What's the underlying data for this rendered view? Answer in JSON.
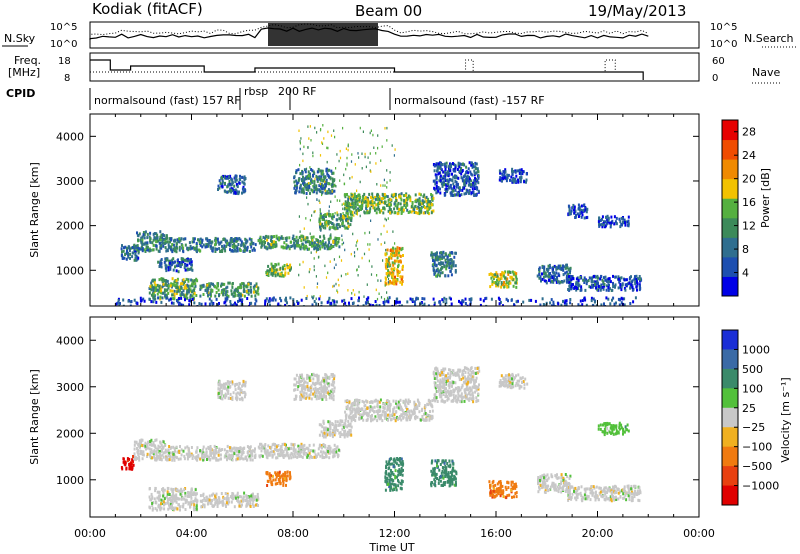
{
  "header": {
    "station": "Kodiak (fitACF)",
    "beam": "Beam 00",
    "date": "19/May/2013"
  },
  "summary_panels": {
    "nsky_label": "N.Sky",
    "nsky_ticks": [
      "10^5",
      "10^0"
    ],
    "nsearch_label": "N.Search",
    "freq_label_1": "Freq.",
    "freq_label_2": "[MHz]",
    "freq_ticks": [
      "18",
      "8"
    ],
    "nave_ticks": [
      "60",
      "0"
    ],
    "nave_label": "Nave",
    "cpid_label": "CPID",
    "cpid_segments": [
      "normalsound (fast) 157 RF",
      "rbsp",
      "200 RF",
      "normalsound (fast) -157 RF"
    ]
  },
  "colors": {
    "power": [
      "#0000e6",
      "#1d4fb0",
      "#2f6e8f",
      "#3c8a5a",
      "#55b040",
      "#f2c200",
      "#f08a00",
      "#f04c00",
      "#e60000"
    ],
    "velocity": [
      "#1a2ed6",
      "#3a6aa6",
      "#3a8a6a",
      "#52c03a",
      "#c8c8c8",
      "#f0b020",
      "#f07a10",
      "#e84010",
      "#e00000"
    ]
  },
  "chart_data": [
    {
      "type": "heatmap",
      "quantity": "Power",
      "xlabel": "Time UT",
      "ylabel": "Slant Range [km]",
      "x_ticks": [
        "00:00",
        "04:00",
        "08:00",
        "12:00",
        "16:00",
        "20:00",
        "00:00"
      ],
      "xlim_hours": [
        0,
        24
      ],
      "ylim": [
        200,
        4500
      ],
      "y_ticks": [
        1000,
        2000,
        3000,
        4000
      ],
      "colorbar_label": "Power [dB]",
      "colorbar_ticks": [
        4,
        8,
        12,
        16,
        20,
        24,
        28
      ],
      "colorbar_range": [
        0,
        30
      ],
      "echo_regions": [
        {
          "t0": 1.7,
          "t1": 3.0,
          "r0": 1450,
          "r1": 1900,
          "v": 10
        },
        {
          "t0": 1.2,
          "t1": 1.9,
          "r0": 1250,
          "r1": 1600,
          "v": 8
        },
        {
          "t0": 2.3,
          "t1": 4.2,
          "r0": 380,
          "r1": 850,
          "v": 13
        },
        {
          "t0": 4.3,
          "t1": 6.6,
          "r0": 450,
          "r1": 750,
          "v": 12
        },
        {
          "t0": 3.0,
          "t1": 6.5,
          "r0": 1450,
          "r1": 1750,
          "v": 9
        },
        {
          "t0": 2.6,
          "t1": 4.0,
          "r0": 1000,
          "r1": 1300,
          "v": 7
        },
        {
          "t0": 5.0,
          "t1": 6.1,
          "r0": 2750,
          "r1": 3150,
          "v": 7
        },
        {
          "t0": 6.6,
          "t1": 9.8,
          "r0": 1500,
          "r1": 1800,
          "v": 12
        },
        {
          "t0": 8.0,
          "t1": 9.6,
          "r0": 2750,
          "r1": 3300,
          "v": 9
        },
        {
          "t0": 9.0,
          "t1": 10.3,
          "r0": 1950,
          "r1": 2300,
          "v": 13
        },
        {
          "t0": 10.0,
          "t1": 13.5,
          "r0": 2300,
          "r1": 2750,
          "v": 14
        },
        {
          "t0": 13.5,
          "t1": 15.3,
          "r0": 2700,
          "r1": 3450,
          "v": 6
        },
        {
          "t0": 6.9,
          "t1": 7.9,
          "r0": 900,
          "r1": 1200,
          "v": 15
        },
        {
          "t0": 11.6,
          "t1": 12.3,
          "r0": 700,
          "r1": 1550,
          "v": 19
        },
        {
          "t0": 13.4,
          "t1": 14.4,
          "r0": 900,
          "r1": 1450,
          "v": 9
        },
        {
          "t0": 15.7,
          "t1": 16.8,
          "r0": 650,
          "r1": 1000,
          "v": 16
        },
        {
          "t0": 17.6,
          "t1": 18.9,
          "r0": 750,
          "r1": 1150,
          "v": 7
        },
        {
          "t0": 18.8,
          "t1": 21.7,
          "r0": 580,
          "r1": 900,
          "v": 6
        },
        {
          "t0": 20.0,
          "t1": 21.2,
          "r0": 2000,
          "r1": 2250,
          "v": 5
        },
        {
          "t0": 18.8,
          "t1": 19.6,
          "r0": 2200,
          "r1": 2500,
          "v": 5
        },
        {
          "t0": 16.1,
          "t1": 17.2,
          "r0": 3000,
          "r1": 3300,
          "v": 5
        },
        {
          "t0": 8.2,
          "t1": 12.0,
          "r0": 350,
          "r1": 4300,
          "v": 14
        },
        {
          "t0": 1.0,
          "t1": 21.5,
          "r0": 220,
          "r1": 420,
          "v": 5
        }
      ]
    },
    {
      "type": "heatmap",
      "quantity": "Velocity",
      "xlabel": "Time UT",
      "ylabel": "Slant Range [km]",
      "x_ticks": [
        "00:00",
        "04:00",
        "08:00",
        "12:00",
        "16:00",
        "20:00",
        "00:00"
      ],
      "xlim_hours": [
        0,
        24
      ],
      "ylim": [
        200,
        4500
      ],
      "y_ticks": [
        1000,
        2000,
        3000,
        4000
      ],
      "colorbar_label": "Velocity [m s⁻¹]",
      "colorbar_ticks": [
        "1000",
        "500",
        "100",
        "25",
        "−25",
        "−100",
        "−500",
        "−1000"
      ],
      "echo_regions": [
        {
          "t0": 1.7,
          "t1": 3.0,
          "r0": 1450,
          "r1": 1900,
          "c": 4
        },
        {
          "t0": 1.2,
          "t1": 1.7,
          "r0": 1250,
          "r1": 1550,
          "c": 8
        },
        {
          "t0": 2.3,
          "t1": 4.2,
          "r0": 380,
          "r1": 850,
          "c": 4
        },
        {
          "t0": 4.3,
          "t1": 6.6,
          "r0": 450,
          "r1": 750,
          "c": 4
        },
        {
          "t0": 3.0,
          "t1": 6.5,
          "r0": 1450,
          "r1": 1750,
          "c": 4
        },
        {
          "t0": 5.0,
          "t1": 6.1,
          "r0": 2750,
          "r1": 3150,
          "c": 4
        },
        {
          "t0": 6.6,
          "t1": 9.8,
          "r0": 1500,
          "r1": 1800,
          "c": 4
        },
        {
          "t0": 8.0,
          "t1": 9.6,
          "r0": 2750,
          "r1": 3300,
          "c": 4
        },
        {
          "t0": 9.0,
          "t1": 10.3,
          "r0": 1950,
          "r1": 2300,
          "c": 4
        },
        {
          "t0": 10.0,
          "t1": 13.5,
          "r0": 2300,
          "r1": 2750,
          "c": 4
        },
        {
          "t0": 13.5,
          "t1": 15.3,
          "r0": 2700,
          "r1": 3450,
          "c": 4
        },
        {
          "t0": 6.9,
          "t1": 7.9,
          "r0": 900,
          "r1": 1200,
          "c": 6
        },
        {
          "t0": 11.6,
          "t1": 12.3,
          "r0": 800,
          "r1": 1500,
          "c": 2
        },
        {
          "t0": 13.4,
          "t1": 14.4,
          "r0": 900,
          "r1": 1450,
          "c": 2
        },
        {
          "t0": 15.7,
          "t1": 16.8,
          "r0": 650,
          "r1": 1000,
          "c": 6
        },
        {
          "t0": 17.6,
          "t1": 18.9,
          "r0": 750,
          "r1": 1150,
          "c": 4
        },
        {
          "t0": 18.8,
          "t1": 21.7,
          "r0": 580,
          "r1": 900,
          "c": 4
        },
        {
          "t0": 20.0,
          "t1": 21.2,
          "r0": 2000,
          "r1": 2250,
          "c": 3
        },
        {
          "t0": 16.1,
          "t1": 17.2,
          "r0": 3000,
          "r1": 3300,
          "c": 4
        }
      ]
    }
  ]
}
